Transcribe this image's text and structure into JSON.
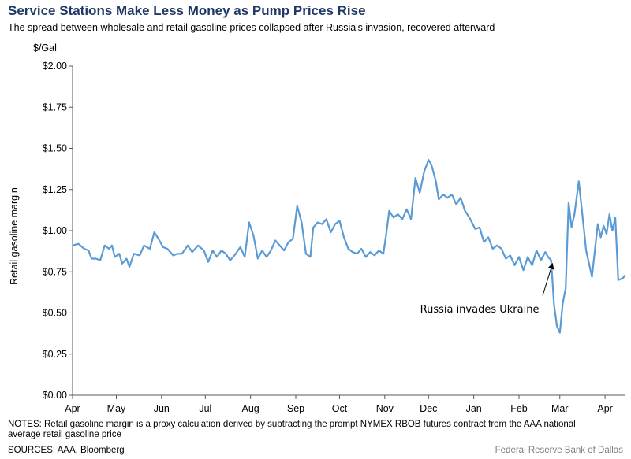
{
  "header": {
    "title": "Service Stations Make Less Money as Pump Prices Rise",
    "subtitle": "The spread between wholesale and retail gasoline prices collapsed after Russia's invasion, recovered afterward"
  },
  "chart_data": {
    "type": "line",
    "unit_label": "$/Gal",
    "ylabel": "Retail gasoline margin",
    "ylim": [
      0,
      2.0
    ],
    "yticks": [
      {
        "v": 0.0,
        "label": "$0.00"
      },
      {
        "v": 0.25,
        "label": "$0.25"
      },
      {
        "v": 0.5,
        "label": "$0.50"
      },
      {
        "v": 0.75,
        "label": "$0.75"
      },
      {
        "v": 1.0,
        "label": "$1.00"
      },
      {
        "v": 1.25,
        "label": "$1.25"
      },
      {
        "v": 1.5,
        "label": "$1.50"
      },
      {
        "v": 1.75,
        "label": "$1.75"
      },
      {
        "v": 2.0,
        "label": "$2.00"
      }
    ],
    "xlim": [
      "2021-04-01",
      "2022-04-15"
    ],
    "xticks": [
      {
        "date": "2021-04-01",
        "label": "Apr"
      },
      {
        "date": "2021-05-01",
        "label": "May"
      },
      {
        "date": "2021-06-01",
        "label": "Jun"
      },
      {
        "date": "2021-07-01",
        "label": "Jul"
      },
      {
        "date": "2021-08-01",
        "label": "Aug"
      },
      {
        "date": "2021-09-01",
        "label": "Sep"
      },
      {
        "date": "2021-10-01",
        "label": "Oct"
      },
      {
        "date": "2021-11-01",
        "label": "Nov"
      },
      {
        "date": "2021-12-01",
        "label": "Dec"
      },
      {
        "date": "2022-01-01",
        "label": "Jan"
      },
      {
        "date": "2022-02-01",
        "label": "Feb"
      },
      {
        "date": "2022-03-01",
        "label": "Mar"
      },
      {
        "date": "2022-04-01",
        "label": "Apr"
      }
    ],
    "series": [
      {
        "color": "#5b9bd5",
        "points": [
          [
            "2021-04-01",
            0.91
          ],
          [
            "2021-04-05",
            0.92
          ],
          [
            "2021-04-09",
            0.89
          ],
          [
            "2021-04-12",
            0.88
          ],
          [
            "2021-04-14",
            0.83
          ],
          [
            "2021-04-17",
            0.83
          ],
          [
            "2021-04-20",
            0.82
          ],
          [
            "2021-04-23",
            0.91
          ],
          [
            "2021-04-26",
            0.89
          ],
          [
            "2021-04-28",
            0.91
          ],
          [
            "2021-04-30",
            0.84
          ],
          [
            "2021-05-03",
            0.86
          ],
          [
            "2021-05-05",
            0.8
          ],
          [
            "2021-05-08",
            0.83
          ],
          [
            "2021-05-10",
            0.78
          ],
          [
            "2021-05-13",
            0.86
          ],
          [
            "2021-05-17",
            0.85
          ],
          [
            "2021-05-20",
            0.91
          ],
          [
            "2021-05-24",
            0.89
          ],
          [
            "2021-05-27",
            0.99
          ],
          [
            "2021-05-30",
            0.95
          ],
          [
            "2021-06-02",
            0.9
          ],
          [
            "2021-06-05",
            0.89
          ],
          [
            "2021-06-09",
            0.85
          ],
          [
            "2021-06-12",
            0.86
          ],
          [
            "2021-06-15",
            0.86
          ],
          [
            "2021-06-19",
            0.91
          ],
          [
            "2021-06-22",
            0.87
          ],
          [
            "2021-06-26",
            0.91
          ],
          [
            "2021-06-30",
            0.88
          ],
          [
            "2021-07-03",
            0.81
          ],
          [
            "2021-07-06",
            0.88
          ],
          [
            "2021-07-09",
            0.84
          ],
          [
            "2021-07-12",
            0.88
          ],
          [
            "2021-07-15",
            0.86
          ],
          [
            "2021-07-18",
            0.82
          ],
          [
            "2021-07-21",
            0.85
          ],
          [
            "2021-07-25",
            0.9
          ],
          [
            "2021-07-28",
            0.84
          ],
          [
            "2021-07-31",
            1.05
          ],
          [
            "2021-08-03",
            0.97
          ],
          [
            "2021-08-06",
            0.83
          ],
          [
            "2021-08-09",
            0.88
          ],
          [
            "2021-08-12",
            0.84
          ],
          [
            "2021-08-15",
            0.88
          ],
          [
            "2021-08-18",
            0.94
          ],
          [
            "2021-08-21",
            0.91
          ],
          [
            "2021-08-24",
            0.88
          ],
          [
            "2021-08-27",
            0.93
          ],
          [
            "2021-08-30",
            0.95
          ],
          [
            "2021-09-02",
            1.15
          ],
          [
            "2021-09-05",
            1.05
          ],
          [
            "2021-09-08",
            0.86
          ],
          [
            "2021-09-11",
            0.84
          ],
          [
            "2021-09-13",
            1.02
          ],
          [
            "2021-09-16",
            1.05
          ],
          [
            "2021-09-19",
            1.04
          ],
          [
            "2021-09-22",
            1.07
          ],
          [
            "2021-09-25",
            0.99
          ],
          [
            "2021-09-28",
            1.04
          ],
          [
            "2021-10-01",
            1.06
          ],
          [
            "2021-10-04",
            0.96
          ],
          [
            "2021-10-07",
            0.89
          ],
          [
            "2021-10-10",
            0.87
          ],
          [
            "2021-10-13",
            0.86
          ],
          [
            "2021-10-16",
            0.89
          ],
          [
            "2021-10-19",
            0.84
          ],
          [
            "2021-10-22",
            0.87
          ],
          [
            "2021-10-25",
            0.85
          ],
          [
            "2021-10-28",
            0.88
          ],
          [
            "2021-10-31",
            0.86
          ],
          [
            "2021-11-02",
            0.98
          ],
          [
            "2021-11-04",
            1.12
          ],
          [
            "2021-11-07",
            1.08
          ],
          [
            "2021-11-10",
            1.1
          ],
          [
            "2021-11-13",
            1.07
          ],
          [
            "2021-11-16",
            1.13
          ],
          [
            "2021-11-19",
            1.07
          ],
          [
            "2021-11-22",
            1.32
          ],
          [
            "2021-11-25",
            1.23
          ],
          [
            "2021-11-28",
            1.36
          ],
          [
            "2021-12-01",
            1.43
          ],
          [
            "2021-12-03",
            1.4
          ],
          [
            "2021-12-06",
            1.3
          ],
          [
            "2021-12-08",
            1.19
          ],
          [
            "2021-12-11",
            1.22
          ],
          [
            "2021-12-14",
            1.2
          ],
          [
            "2021-12-17",
            1.22
          ],
          [
            "2021-12-20",
            1.16
          ],
          [
            "2021-12-23",
            1.2
          ],
          [
            "2021-12-26",
            1.12
          ],
          [
            "2021-12-29",
            1.08
          ],
          [
            "2022-01-02",
            1.01
          ],
          [
            "2022-01-05",
            1.02
          ],
          [
            "2022-01-08",
            0.93
          ],
          [
            "2022-01-11",
            0.96
          ],
          [
            "2022-01-14",
            0.89
          ],
          [
            "2022-01-17",
            0.91
          ],
          [
            "2022-01-20",
            0.89
          ],
          [
            "2022-01-23",
            0.83
          ],
          [
            "2022-01-26",
            0.85
          ],
          [
            "2022-01-29",
            0.79
          ],
          [
            "2022-02-01",
            0.84
          ],
          [
            "2022-02-04",
            0.76
          ],
          [
            "2022-02-07",
            0.84
          ],
          [
            "2022-02-10",
            0.79
          ],
          [
            "2022-02-13",
            0.88
          ],
          [
            "2022-02-16",
            0.82
          ],
          [
            "2022-02-19",
            0.87
          ],
          [
            "2022-02-21",
            0.84
          ],
          [
            "2022-02-23",
            0.82
          ],
          [
            "2022-02-25",
            0.55
          ],
          [
            "2022-02-27",
            0.42
          ],
          [
            "2022-03-01",
            0.38
          ],
          [
            "2022-03-03",
            0.56
          ],
          [
            "2022-03-05",
            0.65
          ],
          [
            "2022-03-07",
            1.17
          ],
          [
            "2022-03-09",
            1.02
          ],
          [
            "2022-03-11",
            1.1
          ],
          [
            "2022-03-14",
            1.3
          ],
          [
            "2022-03-17",
            1.05
          ],
          [
            "2022-03-19",
            0.88
          ],
          [
            "2022-03-21",
            0.8
          ],
          [
            "2022-03-23",
            0.72
          ],
          [
            "2022-03-25",
            0.88
          ],
          [
            "2022-03-27",
            1.04
          ],
          [
            "2022-03-29",
            0.96
          ],
          [
            "2022-03-31",
            1.03
          ],
          [
            "2022-04-02",
            0.98
          ],
          [
            "2022-04-04",
            1.1
          ],
          [
            "2022-04-06",
            1.0
          ],
          [
            "2022-04-08",
            1.08
          ],
          [
            "2022-04-10",
            0.7
          ],
          [
            "2022-04-13",
            0.71
          ],
          [
            "2022-04-15",
            0.73
          ]
        ]
      }
    ],
    "annotation": {
      "text": "Russia invades Ukraine",
      "point_date": "2022-02-24",
      "point_value": 0.8,
      "text_date": "2022-01-05",
      "text_value": 0.53
    }
  },
  "footer": {
    "notes": "NOTES: Retail gasoline margin is a proxy calculation derived by subtracting the prompt NYMEX RBOB futures contract from the AAA national average retail gasoline price",
    "sources": "SOURCES: AAA, Bloomberg",
    "credit": "Federal Reserve Bank of Dallas"
  }
}
